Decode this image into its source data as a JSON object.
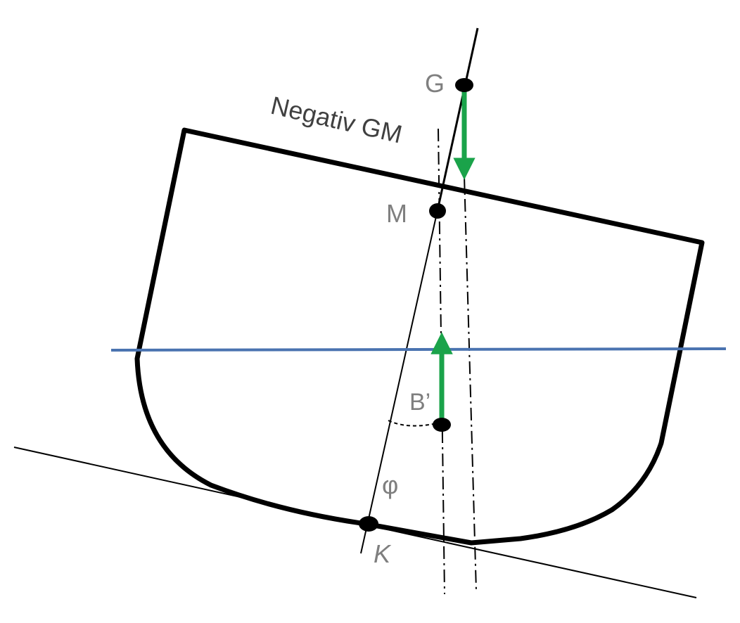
{
  "labels": {
    "title": "Negativ GM",
    "g": "G",
    "m": "M",
    "b": "B’",
    "k": "K",
    "phi": "φ"
  },
  "colors": {
    "hull": "#000000",
    "waterline": "#4a73b0",
    "force_arrow": "#1aa34a",
    "label_gray": "#7f7f7f",
    "label_dark": "#404040"
  }
}
